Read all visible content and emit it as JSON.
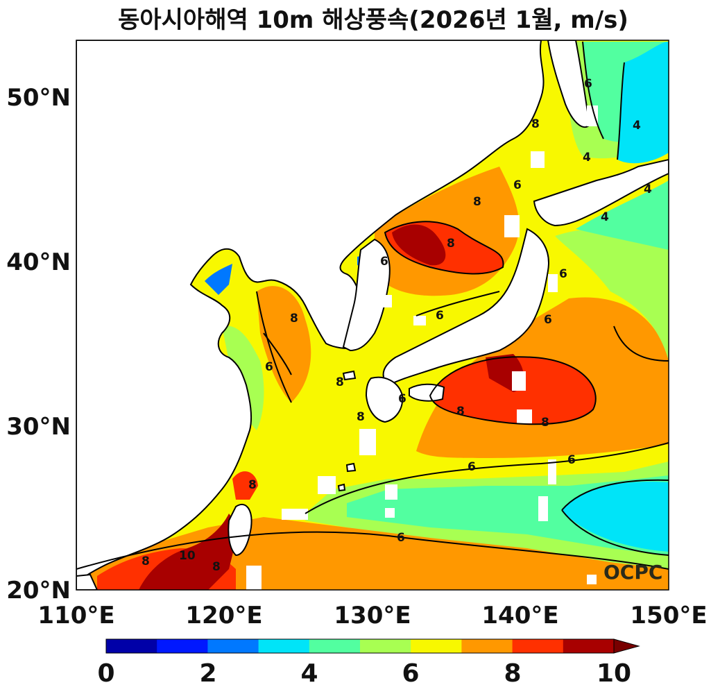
{
  "title": "동아시아해역 10m 해상풍속(2026년 1월, m/s)",
  "logo": "OCPC",
  "lon_ticks": [
    "110°E",
    "120°E",
    "130°E",
    "140°E",
    "150°E"
  ],
  "lat_ticks": [
    "50°N",
    "40°N",
    "30°N",
    "20°N"
  ],
  "contour_labels": [
    "4",
    "4",
    "4",
    "4",
    "6",
    "6",
    "6",
    "6",
    "6",
    "6",
    "6",
    "6",
    "6",
    "6",
    "6",
    "8",
    "8",
    "8",
    "8",
    "8",
    "8",
    "8",
    "8",
    "8",
    "8",
    "8",
    "10"
  ],
  "colorbar": {
    "tick_labels": [
      "0",
      "2",
      "4",
      "6",
      "8",
      "10"
    ],
    "colors": [
      "#0000a8",
      "#0018ff",
      "#0078ff",
      "#00e4f8",
      "#52ffa0",
      "#a8ff52",
      "#f8f800",
      "#ff9800",
      "#ff3000",
      "#a80000",
      "#780000"
    ]
  },
  "chart_data": {
    "type": "heatmap",
    "title": "동아시아해역 10m 해상풍속(2026년 1월, m/s)",
    "xlim": [
      110,
      150
    ],
    "ylim": [
      20,
      53.5
    ],
    "x_ticks": [
      110,
      120,
      130,
      140,
      150
    ],
    "y_ticks": [
      50,
      40,
      30,
      20
    ],
    "colorbar_range": [
      0,
      10
    ],
    "colorbar_step": 1,
    "contour_levels": [
      4,
      6,
      8,
      10
    ]
  }
}
